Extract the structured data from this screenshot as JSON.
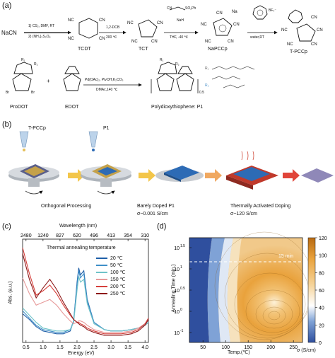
{
  "panel_a": {
    "label": "(a)",
    "reagent_start": "NaCN",
    "step1_line1": "1) CS₂, DMF, RT",
    "step1_line2": "2) (NH₄)₂S₂O₈",
    "step2_line1": "1,2-DCB",
    "step2_line2": "200 ℃",
    "step3_line1": "NaH",
    "step3_line2": "THF, -40 ℃",
    "step4_reagent": "BF₄⁻",
    "step4_line2": "water,RT",
    "cn": "CN",
    "nc": "NC",
    "na": "Na",
    "compound_tcdt": "TCDT",
    "compound_tct": "TCT",
    "compound_napccp": "NaPCCp",
    "compound_tpccp": "T-PCCp",
    "so2ph": "SO₂Ph",
    "prodot": "ProDOT",
    "edot": "EDOT",
    "coupling_line1": "Pd(OAc)₂, PivOH,K₂CO₃",
    "coupling_line2": "DMAc,140 ℃",
    "polymer": "Polydioxythiophene: P1",
    "br": "Br",
    "r1": "R₁",
    "r2": "R₂",
    "n_sub": "0.5",
    "plus": "+"
  },
  "panel_b": {
    "label": "(b)",
    "dopant": "T-PCCp",
    "polymer": "P1",
    "step1_caption": "Orthogonal Processing",
    "step2_caption_line1": "Barely Doped P1",
    "step2_caption_line2": "σ~0.001 S/cm",
    "step3_caption_line1": "Thermally Activated Doping",
    "step3_caption_line2": "σ~120 S/cm"
  },
  "panel_c": {
    "label": "(c)",
    "chart_data": {
      "type": "line",
      "title": "Thermal annealing temperature",
      "xlabel": "Energy (eV)",
      "ylabel": "Abs. (a.u.)",
      "top_xlabel": "Wavelength (nm)",
      "xlim": [
        0.4,
        4.1
      ],
      "x_ticks": [
        "0.5",
        "1.0",
        "1.5",
        "2.0",
        "2.5",
        "3.0",
        "3.5",
        "4.0"
      ],
      "top_ticks": [
        "2480",
        "1240",
        "827",
        "620",
        "496",
        "413",
        "354",
        "310"
      ],
      "x": [
        0.4,
        0.6,
        0.8,
        1.0,
        1.2,
        1.4,
        1.6,
        1.8,
        1.9,
        2.0,
        2.05,
        2.1,
        2.2,
        2.3,
        2.5,
        2.8,
        3.0,
        3.3,
        3.6,
        3.8,
        4.0,
        4.1
      ],
      "series": [
        {
          "name": "20 ℃",
          "color": "#1f5fa8",
          "values": [
            0.2,
            0.16,
            0.11,
            0.08,
            0.07,
            0.06,
            0.06,
            0.08,
            0.15,
            0.42,
            0.52,
            0.47,
            0.5,
            0.3,
            0.14,
            0.09,
            0.08,
            0.08,
            0.09,
            0.1,
            0.12,
            0.14
          ]
        },
        {
          "name": "50 ℃",
          "color": "#3f8fc8",
          "values": [
            0.22,
            0.17,
            0.12,
            0.09,
            0.08,
            0.07,
            0.07,
            0.09,
            0.15,
            0.4,
            0.5,
            0.45,
            0.48,
            0.29,
            0.14,
            0.09,
            0.08,
            0.08,
            0.09,
            0.1,
            0.12,
            0.14
          ]
        },
        {
          "name": "100 ℃",
          "color": "#6fc3c8",
          "values": [
            0.24,
            0.19,
            0.14,
            0.1,
            0.09,
            0.08,
            0.08,
            0.09,
            0.14,
            0.36,
            0.46,
            0.42,
            0.44,
            0.27,
            0.13,
            0.09,
            0.08,
            0.08,
            0.09,
            0.1,
            0.12,
            0.14
          ]
        },
        {
          "name": "150 ℃",
          "color": "#e79a9a",
          "values": [
            0.45,
            0.34,
            0.26,
            0.28,
            0.3,
            0.26,
            0.2,
            0.15,
            0.13,
            0.14,
            0.15,
            0.15,
            0.14,
            0.12,
            0.09,
            0.07,
            0.07,
            0.07,
            0.08,
            0.1,
            0.13,
            0.16
          ]
        },
        {
          "name": "200 ℃",
          "color": "#d6403c",
          "values": [
            0.66,
            0.48,
            0.33,
            0.36,
            0.4,
            0.34,
            0.26,
            0.19,
            0.16,
            0.14,
            0.14,
            0.13,
            0.12,
            0.1,
            0.08,
            0.06,
            0.06,
            0.06,
            0.07,
            0.09,
            0.13,
            0.17
          ]
        },
        {
          "name": "250 ℃",
          "color": "#8e1a1a",
          "values": [
            0.62,
            0.44,
            0.31,
            0.38,
            0.44,
            0.37,
            0.28,
            0.2,
            0.16,
            0.14,
            0.13,
            0.12,
            0.11,
            0.09,
            0.07,
            0.05,
            0.05,
            0.05,
            0.06,
            0.08,
            0.12,
            0.16
          ]
        }
      ]
    }
  },
  "panel_d": {
    "label": "(d)",
    "chart_data": {
      "type": "heatmap",
      "xlabel": "Temp.(℃)",
      "ylabel": "Annealing Time (min.)",
      "x_ticks": [
        "50",
        "100",
        "150",
        "200",
        "250"
      ],
      "y_ticks": [
        "10⁻¹",
        "10⁰",
        "10^0.5",
        "10^1",
        "10^1.5"
      ],
      "y_tick_labels": [
        "10",
        "10",
        "10",
        "10",
        "10"
      ],
      "y_tick_exps": [
        "-1",
        "0",
        "0.5",
        "1",
        "1.5"
      ],
      "xlim": [
        20,
        270
      ],
      "annotation": "15 min",
      "colorbar_label": "σ (S/cm)",
      "colorbar_ticks": [
        "0",
        "20",
        "40",
        "60",
        "80",
        "100",
        "120"
      ],
      "colorbar_range": [
        0,
        120
      ],
      "colors": [
        "#2f4f9e",
        "#7fa2d6",
        "#ffffff",
        "#f6d49a",
        "#e9a23c",
        "#b86a12"
      ]
    }
  }
}
